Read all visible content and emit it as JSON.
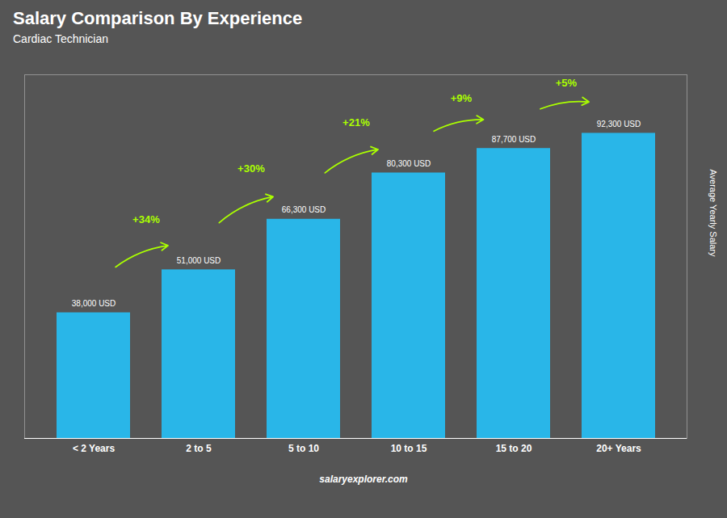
{
  "chart_data": {
    "type": "bar",
    "title": "Salary Comparison By Experience",
    "subtitle": "Cardiac Technician",
    "ylabel": "Average Yearly Salary",
    "caption": "salaryexplorer.com",
    "categories": [
      "< 2 Years",
      "2 to 5",
      "5 to 10",
      "10 to 15",
      "15 to 20",
      "20+ Years"
    ],
    "values": [
      38000,
      51000,
      66300,
      80300,
      87700,
      92300
    ],
    "value_labels": [
      "38,000 USD",
      "51,000 USD",
      "66,300 USD",
      "80,300 USD",
      "87,700 USD",
      "92,300 USD"
    ],
    "data_labels": true,
    "color": "#29b6e8",
    "annotations": [
      {
        "text": "+34%",
        "color": "#aaff00"
      },
      {
        "text": "+30%",
        "color": "#aaff00"
      },
      {
        "text": "+21%",
        "color": "#aaff00"
      },
      {
        "text": "+9%",
        "color": "#aaff00"
      },
      {
        "text": "+5%",
        "color": "#aaff00"
      }
    ],
    "ylim": [
      0,
      110000
    ],
    "yticks": [],
    "tick_labels": "x"
  }
}
